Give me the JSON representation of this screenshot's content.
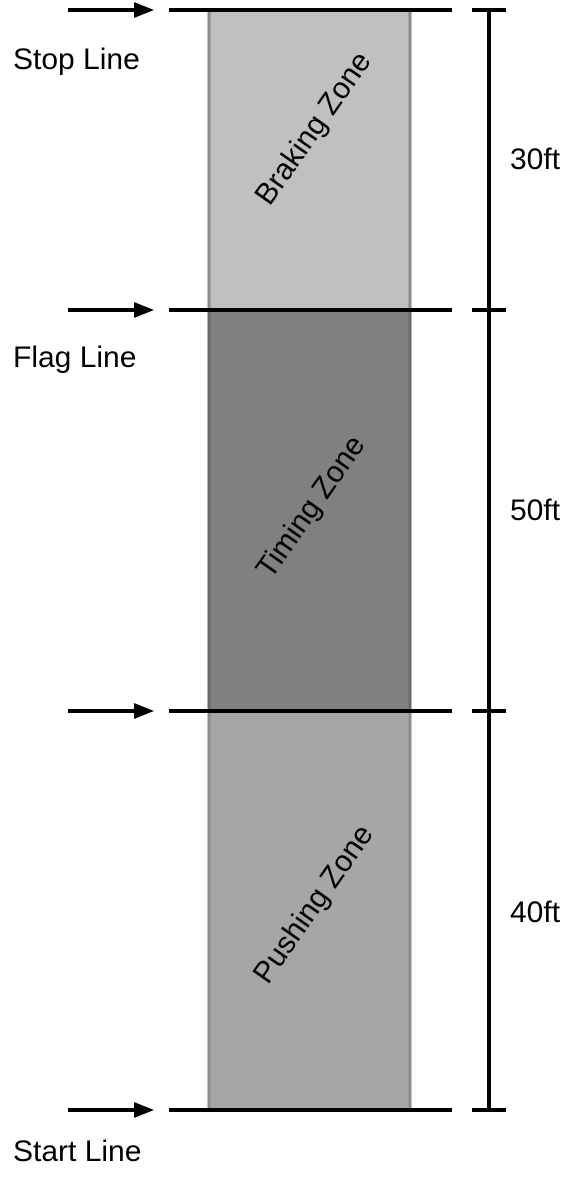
{
  "lines": {
    "stop": "Stop Line",
    "flag": "Flag Line",
    "start": "Start Line"
  },
  "zones": [
    {
      "label": "Braking Zone",
      "fill": "#c0c0c0"
    },
    {
      "label": "Timing Zone",
      "fill": "#808080"
    },
    {
      "label": "Pushing Zone",
      "fill": "#a6a6a6"
    }
  ],
  "dimensions": [
    "30ft",
    "50ft",
    "40ft"
  ],
  "colors": {
    "line": "#000000",
    "zone_border": "#7f7f7f"
  }
}
